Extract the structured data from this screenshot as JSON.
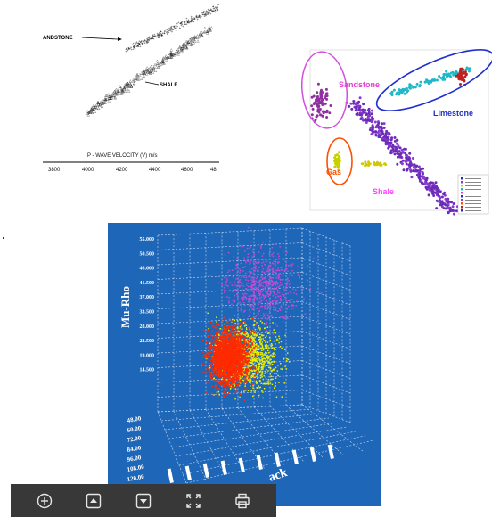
{
  "figure1": {
    "labels": {
      "sandstone": "ANDSTONE",
      "shale": "SHALE"
    },
    "axis_label": "P - WAVE  VELOCITY (V) m/s",
    "x_ticks": [
      "3800",
      "4000",
      "4200",
      "4400",
      "4600",
      "48"
    ]
  },
  "figure2": {
    "labels": {
      "sandstone": "Sandstone",
      "limestone": "Limestone",
      "gas": "Gas",
      "shale": "Shale"
    },
    "colors": {
      "sandstone": "#e040d0",
      "limestone": "#2030c0",
      "gas": "#ff6000",
      "shale": "#ff40ff"
    }
  },
  "figure3": {
    "ylabel": "Mu-Rho",
    "xlabel_partial": "ack",
    "y_ticks": [
      "55.000",
      "50.500",
      "46.000",
      "41.500",
      "37.000",
      "33.500",
      "28.000",
      "23.500",
      "19.000",
      "14.500"
    ],
    "left_ticks": [
      "120.00",
      "108.00",
      "96.00",
      "84.00",
      "72.00",
      "60.00",
      "48.00"
    ],
    "colors": {
      "background": "#1e67b8",
      "red": "#ff2a00",
      "yellow": "#e8f000",
      "magenta": "#d050e0"
    }
  },
  "toolbar": {
    "buttons": [
      {
        "name": "zoom-in-button",
        "icon": "plus-circle-icon"
      },
      {
        "name": "previous-page-button",
        "icon": "triangle-up-icon"
      },
      {
        "name": "next-page-button",
        "icon": "triangle-down-icon"
      },
      {
        "name": "fullscreen-button",
        "icon": "expand-icon"
      },
      {
        "name": "print-button",
        "icon": "printer-icon"
      }
    ]
  }
}
